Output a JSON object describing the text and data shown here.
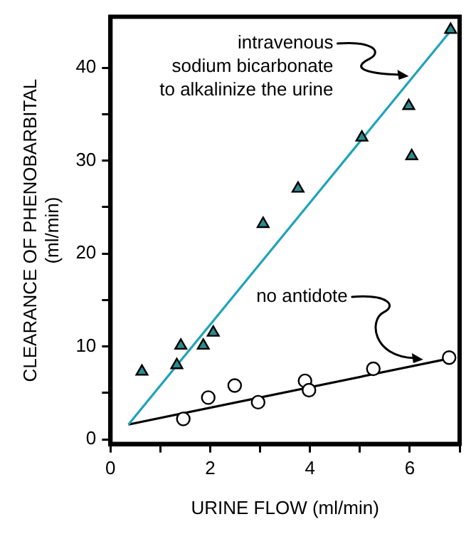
{
  "chart_data": {
    "type": "scatter",
    "xlabel": "URINE FLOW (ml/min)",
    "ylabel": "CLEARANCE OF PHENOBARBITAL\n(ml/min)",
    "xlim": [
      0,
      7
    ],
    "ylim": [
      -0.5,
      45.5
    ],
    "xticks": [
      0,
      {
        "value": 1,
        "label": null
      },
      2,
      {
        "value": 3,
        "label": null
      },
      4,
      {
        "value": 5,
        "label": null
      },
      6,
      {
        "value": 7,
        "label": null
      }
    ],
    "yticks": [
      0,
      {
        "value": 5,
        "label": null
      },
      10,
      {
        "value": 15,
        "label": null
      },
      20,
      {
        "value": 25,
        "label": null
      },
      30,
      {
        "value": 35,
        "label": null
      },
      40
    ],
    "grid": false,
    "legend": false,
    "series": [
      {
        "marker": "triangle",
        "color": "#2a8c8f",
        "x": [
          6.82,
          5.98,
          6.04,
          5.04,
          3.76,
          3.06,
          0.63,
          1.33,
          1.41,
          1.86,
          2.06
        ],
        "values": [
          44.1,
          35.9,
          30.5,
          32.5,
          27.0,
          23.2,
          7.3,
          8.0,
          10.1,
          10.1,
          11.5
        ]
      },
      {
        "type": "line",
        "marker": "none",
        "line_style": "solid",
        "color": "#1fa3b8",
        "x": [
          0.36,
          6.82
        ],
        "values": [
          1.6,
          44
        ]
      },
      {
        "marker": "circle",
        "color": "#ffffff",
        "x": [
          1.46,
          1.96,
          2.49,
          2.96,
          3.9,
          3.98,
          5.27,
          6.79
        ],
        "values": [
          2.2,
          4.5,
          5.8,
          4.0,
          6.3,
          5.3,
          7.6,
          8.8
        ]
      },
      {
        "type": "line",
        "marker": "none",
        "line_style": "solid",
        "color": "#000000",
        "x": [
          0.36,
          6.79
        ],
        "values": [
          1.6,
          8.7
        ]
      }
    ],
    "annotations": [
      {
        "text": "intravenous\nsodium bicarbonate\nto alkalinize the urine",
        "x": 5.98,
        "y": 39.1
      },
      {
        "text": "no antidote",
        "x": 6.27,
        "y": 8.6
      }
    ]
  }
}
